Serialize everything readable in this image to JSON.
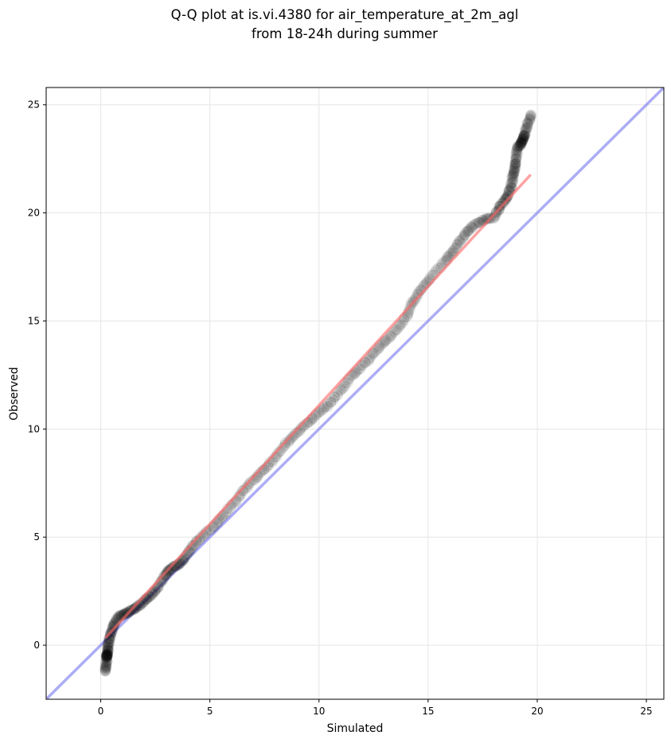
{
  "chart_data": {
    "type": "scatter",
    "title_lines": [
      "Q-Q plot at is.vi.4380 for air_temperature_at_2m_agl",
      "from 18-24h during summer"
    ],
    "xlabel": "Simulated",
    "ylabel": "Observed",
    "xlim": [
      -2.5,
      25.8
    ],
    "ylim": [
      -2.5,
      25.8
    ],
    "xticks": [
      0,
      5,
      10,
      15,
      20,
      25
    ],
    "yticks": [
      0,
      5,
      10,
      15,
      20,
      25
    ],
    "grid": true,
    "colors": {
      "points": "#000000",
      "fit_line": "#ff6666",
      "identity_line": "#7777ee",
      "grid": "#e6e6e6"
    },
    "quantiles_key": [
      [
        0.22,
        -1.2
      ],
      [
        0.28,
        -0.55
      ],
      [
        0.3,
        -0.4
      ],
      [
        0.35,
        0.0
      ],
      [
        0.45,
        0.5
      ],
      [
        0.6,
        0.9
      ],
      [
        0.8,
        1.3
      ],
      [
        1.1,
        1.45
      ],
      [
        1.4,
        1.6
      ],
      [
        1.7,
        1.8
      ],
      [
        2.0,
        2.05
      ],
      [
        2.3,
        2.3
      ],
      [
        2.6,
        2.65
      ],
      [
        2.9,
        3.15
      ],
      [
        3.1,
        3.45
      ],
      [
        3.3,
        3.6
      ],
      [
        3.6,
        3.75
      ],
      [
        3.85,
        4.0
      ],
      [
        4.1,
        4.45
      ],
      [
        4.5,
        4.9
      ],
      [
        5.0,
        5.35
      ],
      [
        5.5,
        5.85
      ],
      [
        6.0,
        6.45
      ],
      [
        6.5,
        7.1
      ],
      [
        7.0,
        7.65
      ],
      [
        7.5,
        8.15
      ],
      [
        8.0,
        8.7
      ],
      [
        8.5,
        9.35
      ],
      [
        9.0,
        9.85
      ],
      [
        9.5,
        10.3
      ],
      [
        10.0,
        10.75
      ],
      [
        10.5,
        11.2
      ],
      [
        11.0,
        11.8
      ],
      [
        11.5,
        12.45
      ],
      [
        12.0,
        12.95
      ],
      [
        12.5,
        13.5
      ],
      [
        13.0,
        14.0
      ],
      [
        13.5,
        14.55
      ],
      [
        14.0,
        15.2
      ],
      [
        14.3,
        15.9
      ],
      [
        14.7,
        16.5
      ],
      [
        15.2,
        17.1
      ],
      [
        15.8,
        17.8
      ],
      [
        16.2,
        18.3
      ],
      [
        16.6,
        18.9
      ],
      [
        17.0,
        19.35
      ],
      [
        17.5,
        19.65
      ],
      [
        18.0,
        19.8
      ],
      [
        18.3,
        20.3
      ],
      [
        18.6,
        20.7
      ],
      [
        18.8,
        21.2
      ],
      [
        18.9,
        21.8
      ],
      [
        19.0,
        22.3
      ],
      [
        19.1,
        23.0
      ],
      [
        19.3,
        23.3
      ],
      [
        19.4,
        23.6
      ],
      [
        19.7,
        24.5
      ]
    ],
    "point_count": 540,
    "fit_line": {
      "slope": 1.1,
      "intercept": 0.1,
      "x_range": [
        0.22,
        19.7
      ]
    },
    "identity_line": {
      "slope": 1,
      "intercept": 0
    }
  }
}
